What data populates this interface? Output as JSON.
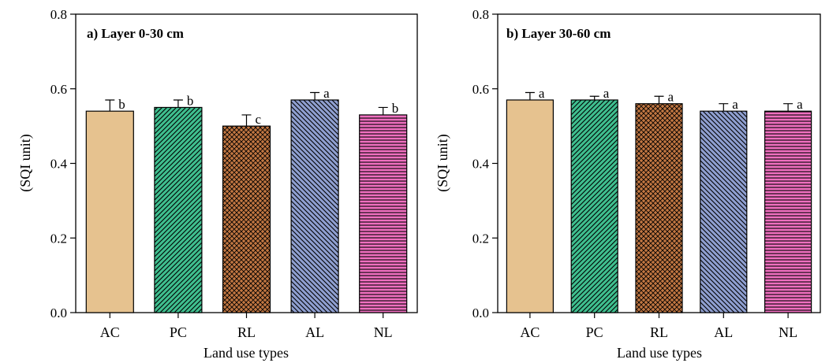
{
  "chart_data": [
    {
      "type": "bar",
      "title": "a) Layer 0-30 cm",
      "xlabel": "Land use types",
      "ylabel": "(SQI unit)",
      "ylim": [
        0,
        0.8
      ],
      "yticks": [
        "0.0",
        "0.2",
        "0.4",
        "0.6",
        "0.8"
      ],
      "categories": [
        "AC",
        "PC",
        "RL",
        "AL",
        "NL"
      ],
      "values": [
        0.54,
        0.55,
        0.5,
        0.57,
        0.53
      ],
      "errors": [
        0.03,
        0.02,
        0.03,
        0.02,
        0.02
      ],
      "letters": [
        "b",
        "b",
        "c",
        "a",
        "b"
      ]
    },
    {
      "type": "bar",
      "title": "b) Layer 30-60 cm",
      "xlabel": "Land use types",
      "ylabel": "(SQI unit)",
      "ylim": [
        0,
        0.8
      ],
      "yticks": [
        "0.0",
        "0.2",
        "0.4",
        "0.6",
        "0.8"
      ],
      "categories": [
        "AC",
        "PC",
        "RL",
        "AL",
        "NL"
      ],
      "values": [
        0.57,
        0.57,
        0.56,
        0.54,
        0.54
      ],
      "errors": [
        0.02,
        0.01,
        0.02,
        0.02,
        0.02
      ],
      "letters": [
        "a",
        "a",
        "a",
        "a",
        "a"
      ]
    }
  ],
  "bar_styles": [
    {
      "fill": "#e6c28f",
      "pattern": "none"
    },
    {
      "fill": "#3fbf8f",
      "pattern": "diagonal"
    },
    {
      "fill": "#c27742",
      "pattern": "crosshatch"
    },
    {
      "fill": "#8f9fd0",
      "pattern": "backdiagonal"
    },
    {
      "fill": "#ef6fbf",
      "pattern": "horizontal"
    }
  ]
}
